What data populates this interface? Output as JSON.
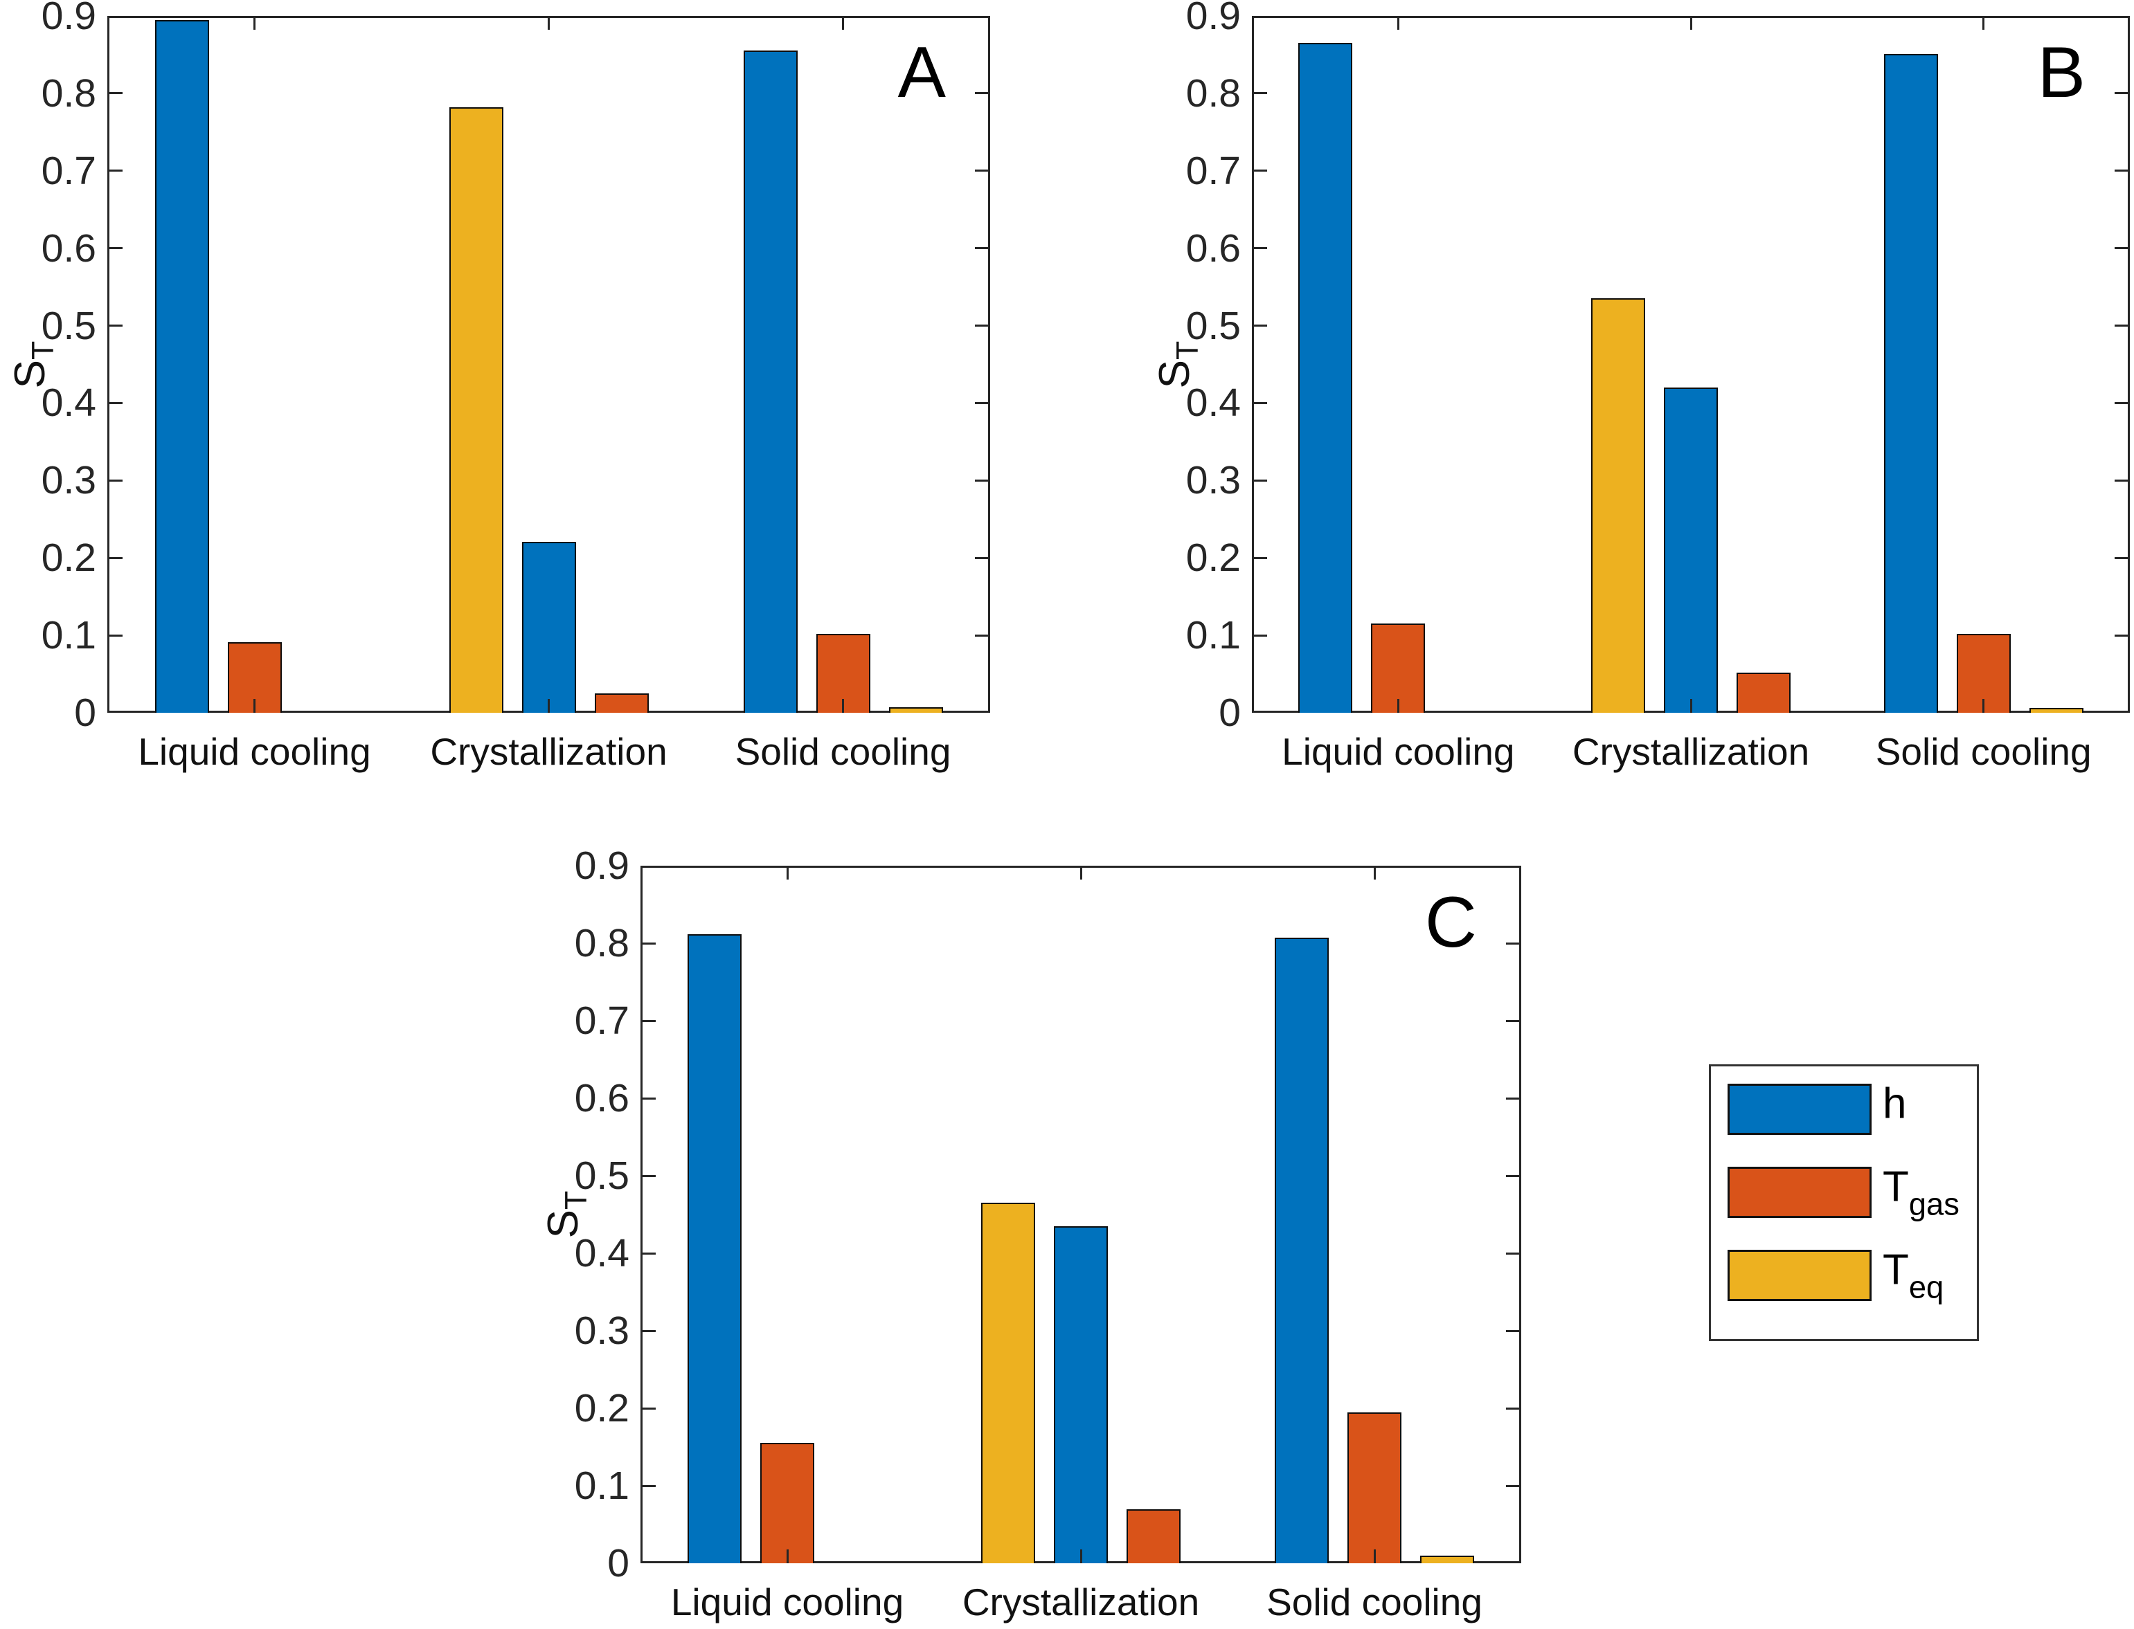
{
  "figure": {
    "background": "#ffffff"
  },
  "series_colors": {
    "h": "#0072BD",
    "T_gas": "#D95319",
    "T_eq": "#EDB120"
  },
  "legend": {
    "entries": [
      {
        "series": "h",
        "label_main": "h",
        "label_sub": "",
        "color": "#0072BD"
      },
      {
        "series": "T_gas",
        "label_main": "T",
        "label_sub": "gas",
        "color": "#D95319"
      },
      {
        "series": "T_eq",
        "label_main": "T",
        "label_sub": "eq",
        "color": "#EDB120"
      }
    ]
  },
  "chart_data": [
    {
      "type": "bar",
      "panel_label": "A",
      "ylabel_main": "S",
      "ylabel_sub": "T",
      "ylim": [
        0,
        0.9
      ],
      "yticks": [
        0,
        0.1,
        0.2,
        0.3,
        0.4,
        0.5,
        0.6,
        0.7,
        0.8,
        0.9
      ],
      "grid": false,
      "categories": [
        "Liquid cooling",
        "Crystallization",
        "Solid cooling"
      ],
      "groups": [
        {
          "category": "Liquid cooling",
          "bars": [
            {
              "series": "h",
              "value": 0.895
            },
            {
              "series": "T_gas",
              "value": 0.091
            },
            {
              "series": "T_eq",
              "value": 0
            }
          ]
        },
        {
          "category": "Crystallization",
          "bars": [
            {
              "series": "T_eq",
              "value": 0.782
            },
            {
              "series": "h",
              "value": 0.221
            },
            {
              "series": "T_gas",
              "value": 0.025
            }
          ]
        },
        {
          "category": "Solid cooling",
          "bars": [
            {
              "series": "h",
              "value": 0.855
            },
            {
              "series": "T_gas",
              "value": 0.102
            },
            {
              "series": "T_eq",
              "value": 0.007
            }
          ]
        }
      ]
    },
    {
      "type": "bar",
      "panel_label": "B",
      "ylabel_main": "S",
      "ylabel_sub": "T",
      "ylim": [
        0,
        0.9
      ],
      "yticks": [
        0,
        0.1,
        0.2,
        0.3,
        0.4,
        0.5,
        0.6,
        0.7,
        0.8,
        0.9
      ],
      "grid": false,
      "categories": [
        "Liquid cooling",
        "Crystallization",
        "Solid cooling"
      ],
      "groups": [
        {
          "category": "Liquid cooling",
          "bars": [
            {
              "series": "h",
              "value": 0.865
            },
            {
              "series": "T_gas",
              "value": 0.115
            },
            {
              "series": "T_eq",
              "value": 0
            }
          ]
        },
        {
          "category": "Crystallization",
          "bars": [
            {
              "series": "T_eq",
              "value": 0.535
            },
            {
              "series": "h",
              "value": 0.42
            },
            {
              "series": "T_gas",
              "value": 0.052
            }
          ]
        },
        {
          "category": "Solid cooling",
          "bars": [
            {
              "series": "h",
              "value": 0.851
            },
            {
              "series": "T_gas",
              "value": 0.102
            },
            {
              "series": "T_eq",
              "value": 0.006
            }
          ]
        }
      ]
    },
    {
      "type": "bar",
      "panel_label": "C",
      "ylabel_main": "S",
      "ylabel_sub": "T",
      "ylim": [
        0,
        0.9
      ],
      "yticks": [
        0,
        0.1,
        0.2,
        0.3,
        0.4,
        0.5,
        0.6,
        0.7,
        0.8,
        0.9
      ],
      "grid": false,
      "categories": [
        "Liquid cooling",
        "Crystallization",
        "Solid cooling"
      ],
      "groups": [
        {
          "category": "Liquid cooling",
          "bars": [
            {
              "series": "h",
              "value": 0.812
            },
            {
              "series": "T_gas",
              "value": 0.155
            },
            {
              "series": "T_eq",
              "value": 0
            }
          ]
        },
        {
          "category": "Crystallization",
          "bars": [
            {
              "series": "T_eq",
              "value": 0.465
            },
            {
              "series": "h",
              "value": 0.435
            },
            {
              "series": "T_gas",
              "value": 0.07
            }
          ]
        },
        {
          "category": "Solid cooling",
          "bars": [
            {
              "series": "h",
              "value": 0.807
            },
            {
              "series": "T_gas",
              "value": 0.195
            },
            {
              "series": "T_eq",
              "value": 0.01
            }
          ]
        }
      ]
    }
  ]
}
